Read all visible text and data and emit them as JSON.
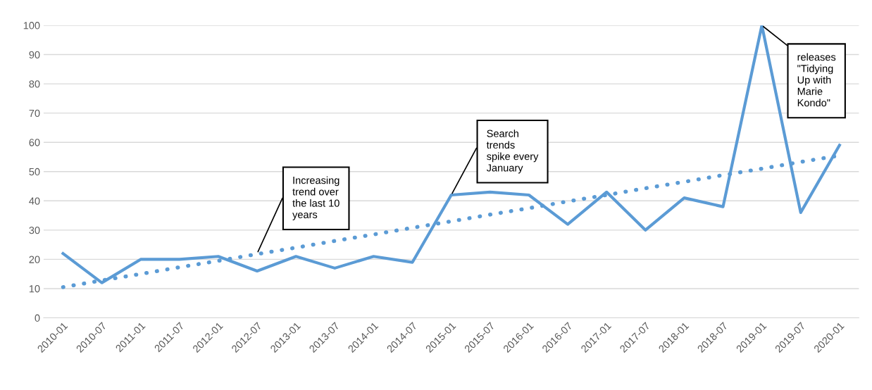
{
  "chart_data": {
    "type": "line",
    "categories": [
      "2010-01",
      "2010-07",
      "2011-01",
      "2011-07",
      "2012-01",
      "2012-07",
      "2013-01",
      "2013-07",
      "2014-01",
      "2014-07",
      "2015-01",
      "2015-07",
      "2016-01",
      "2016-07",
      "2017-01",
      "2017-07",
      "2018-01",
      "2018-07",
      "2019-01",
      "2019-07",
      "2020-01"
    ],
    "series": [
      {
        "color": "#5b9bd5",
        "line_style": "solid",
        "values": [
          22,
          12,
          20,
          20,
          21,
          16,
          21,
          17,
          21,
          19,
          42,
          43,
          42,
          32,
          43,
          30,
          41,
          38,
          100,
          36,
          59
        ]
      },
      {
        "color": "#5b9bd5",
        "line_style": "dotted",
        "values": [
          10.5,
          12.8,
          15,
          17.3,
          19.5,
          21.8,
          24,
          26.3,
          28.5,
          30.8,
          33,
          35.3,
          37.5,
          39.8,
          42,
          44.3,
          46.5,
          48.8,
          51,
          53.3,
          55.5
        ]
      }
    ],
    "ylim": [
      0,
      100
    ],
    "yticks": [
      0,
      10,
      20,
      30,
      40,
      50,
      60,
      70,
      80,
      90,
      100
    ],
    "grid": "y",
    "marker": "none",
    "legend": false,
    "annotations": [
      {
        "text": "Increasing\ntrend over\nthe last 10\nyears",
        "x": "2012-07",
        "y": 22
      },
      {
        "text": "Search\ntrends\nspike every\nJanuary",
        "x": "2015-01",
        "y": 42
      },
      {
        "text": "releases\n\"Tidying\nUp with\nMarie\nKondo\"",
        "x": "2019-01",
        "y": 100
      }
    ]
  }
}
